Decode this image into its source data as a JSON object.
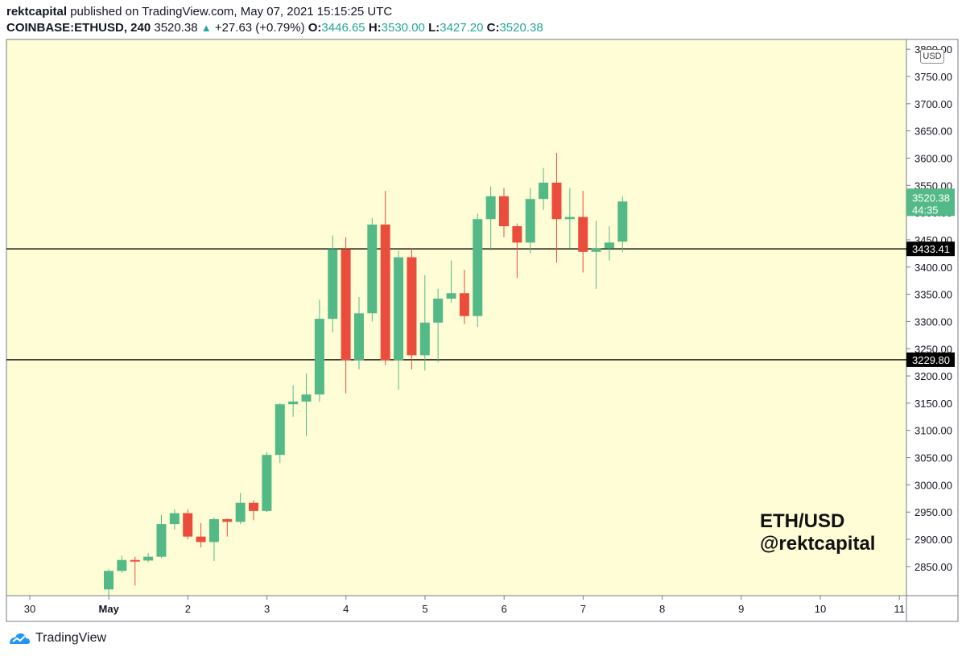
{
  "header": {
    "author": "rektcapital",
    "published_text": "published on TradingView.com, May 07, 2021 15:15:25 UTC",
    "symbol": "COINBASE:ETHUSD, 240",
    "last": "3520.38",
    "change": "+27.63 (+0.79%)",
    "o_label": "O:",
    "o_value": "3446.65",
    "h_label": "H:",
    "h_value": "3530.00",
    "l_label": "L:",
    "l_value": "3427.20",
    "c_label": "C:",
    "c_value": "3520.38"
  },
  "currency": "USD",
  "watermark": {
    "line1": "ETH/USD",
    "line2": "@rektcapital"
  },
  "brand": {
    "name": "TradingView"
  },
  "colors": {
    "bg": "#fefdd5",
    "up": "#53b987",
    "down": "#eb4d3d",
    "level": "#000000"
  },
  "chart_data": {
    "type": "candlestick",
    "interval": "4h",
    "ylim": [
      2800,
      3800
    ],
    "y_ticks": [
      "2850.00",
      "2900.00",
      "2950.00",
      "3000.00",
      "3050.00",
      "3100.00",
      "3150.00",
      "3200.00",
      "3250.00",
      "3300.00",
      "3350.00",
      "3400.00",
      "3450.00",
      "3500.00",
      "3550.00",
      "3600.00",
      "3650.00",
      "3700.00",
      "3750.00",
      "3800.00"
    ],
    "x_ticks": [
      {
        "label": "30",
        "day": 0
      },
      {
        "label": "May",
        "day": 1
      },
      {
        "label": "2",
        "day": 2
      },
      {
        "label": "3",
        "day": 3
      },
      {
        "label": "4",
        "day": 4
      },
      {
        "label": "5",
        "day": 5
      },
      {
        "label": "6",
        "day": 6
      },
      {
        "label": "7",
        "day": 7
      },
      {
        "label": "8",
        "day": 8
      },
      {
        "label": "9",
        "day": 9
      },
      {
        "label": "10",
        "day": 10
      },
      {
        "label": "11",
        "day": 11
      }
    ],
    "levels": [
      {
        "value": 3433.41,
        "label": "3433.41"
      },
      {
        "value": 3229.8,
        "label": "3229.80"
      }
    ],
    "last_price": {
      "value": 3520.38,
      "label": "3520.38",
      "countdown": "44:35"
    },
    "candles": [
      [
        2808,
        2842,
        2795,
        2845
      ],
      [
        2842,
        2862,
        2838,
        2870
      ],
      [
        2862,
        2861,
        2815,
        2868
      ],
      [
        2861,
        2868,
        2858,
        2875
      ],
      [
        2868,
        2928,
        2865,
        2945
      ],
      [
        2928,
        2948,
        2918,
        2955
      ],
      [
        2948,
        2905,
        2900,
        2955
      ],
      [
        2905,
        2895,
        2885,
        2930
      ],
      [
        2895,
        2937,
        2860,
        2940
      ],
      [
        2937,
        2932,
        2905,
        2938
      ],
      [
        2932,
        2967,
        2928,
        2985
      ],
      [
        2967,
        2952,
        2935,
        2972
      ],
      [
        2952,
        3055,
        2950,
        3060
      ],
      [
        3055,
        3148,
        3040,
        3150
      ],
      [
        3148,
        3153,
        3125,
        3183
      ],
      [
        3153,
        3166,
        3090,
        3205
      ],
      [
        3166,
        3305,
        3153,
        3340
      ],
      [
        3305,
        3433,
        3280,
        3458
      ],
      [
        3433,
        3229,
        3168,
        3455
      ],
      [
        3229,
        3315,
        3212,
        3345
      ],
      [
        3315,
        3478,
        3300,
        3490
      ],
      [
        3478,
        3229,
        3220,
        3540
      ],
      [
        3229,
        3418,
        3175,
        3430
      ],
      [
        3418,
        3238,
        3212,
        3435
      ],
      [
        3238,
        3298,
        3210,
        3385
      ],
      [
        3298,
        3342,
        3225,
        3360
      ],
      [
        3342,
        3352,
        3335,
        3412
      ],
      [
        3352,
        3310,
        3295,
        3395
      ],
      [
        3310,
        3488,
        3290,
        3498
      ],
      [
        3488,
        3530,
        3430,
        3548
      ],
      [
        3530,
        3475,
        3455,
        3545
      ],
      [
        3475,
        3445,
        3380,
        3480
      ],
      [
        3445,
        3525,
        3425,
        3545
      ],
      [
        3525,
        3555,
        3505,
        3582
      ],
      [
        3555,
        3488,
        3408,
        3610
      ],
      [
        3488,
        3492,
        3435,
        3545
      ],
      [
        3492,
        3428,
        3390,
        3540
      ],
      [
        3428,
        3434,
        3360,
        3485
      ],
      [
        3434,
        3445,
        3412,
        3475
      ],
      [
        3446.65,
        3520.38,
        3427.2,
        3530.0
      ]
    ]
  }
}
